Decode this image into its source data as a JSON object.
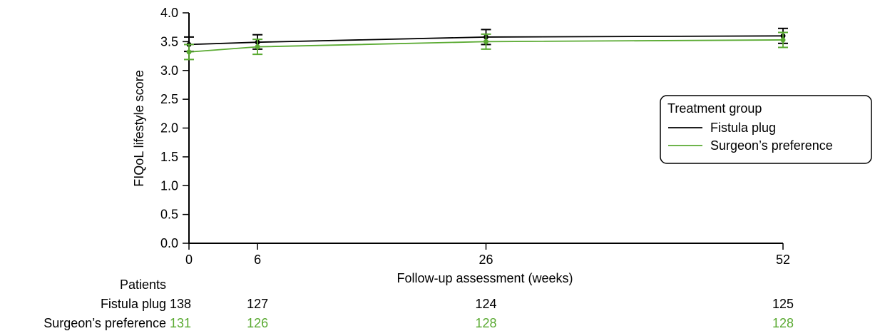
{
  "chart_data": {
    "type": "line",
    "title": "",
    "xlabel": "Follow-up assessment (weeks)",
    "ylabel": "FIQoL lifestyle score",
    "x": [
      0,
      6,
      26,
      52
    ],
    "x_ticks": [
      "0",
      "6",
      "26",
      "52"
    ],
    "xlim": [
      0,
      52
    ],
    "ylim": [
      0,
      4
    ],
    "y_ticks": [
      "0.0",
      "0.5",
      "1.0",
      "1.5",
      "2.0",
      "2.5",
      "3.0",
      "3.5",
      "4.0"
    ],
    "grid": false,
    "legend": {
      "title": "Treatment group",
      "placement": "right",
      "entries": [
        "Fistula plug",
        "Surgeon’s preference"
      ]
    },
    "series": [
      {
        "name": "Fistula plug",
        "color": "#000000",
        "values": [
          3.45,
          3.49,
          3.58,
          3.6
        ],
        "error_low": [
          3.33,
          3.37,
          3.45,
          3.47
        ],
        "error_high": [
          3.58,
          3.62,
          3.71,
          3.73
        ]
      },
      {
        "name": "Surgeon’s preference",
        "color": "#5aaa32",
        "values": [
          3.32,
          3.41,
          3.5,
          3.53
        ],
        "error_low": [
          3.19,
          3.28,
          3.37,
          3.4
        ],
        "error_high": [
          3.45,
          3.54,
          3.63,
          3.66
        ]
      }
    ]
  },
  "patients_table": {
    "heading": "Patients",
    "rows": [
      {
        "label": "Fistula plug",
        "color": "#000000",
        "counts": [
          "138",
          "127",
          "124",
          "125"
        ]
      },
      {
        "label": "Surgeon’s preference",
        "color": "#5aaa32",
        "counts": [
          "131",
          "126",
          "128",
          "128"
        ]
      }
    ]
  }
}
